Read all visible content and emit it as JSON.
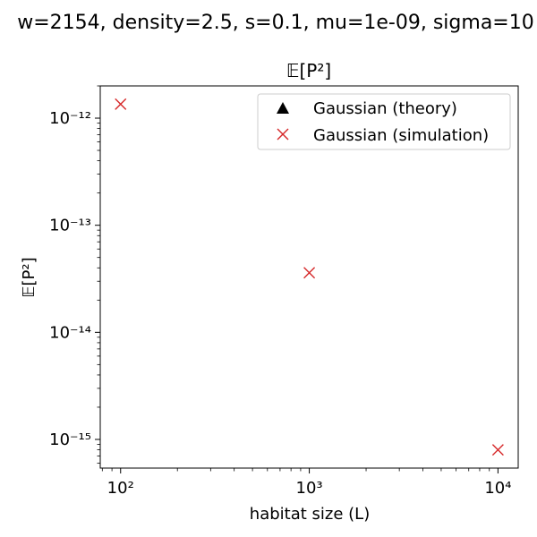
{
  "suptitle": "w=2154, density=2.5, s=0.1, mu=1e-09, sigma=10",
  "chart_data": {
    "type": "scatter",
    "title": "𝔼[P²]",
    "xlabel": "habitat size (L)",
    "ylabel": "𝔼[P²]",
    "xscale": "log",
    "yscale": "log",
    "xlim": [
      78,
      12800
    ],
    "ylim": [
      5.4e-16,
      2e-12
    ],
    "x_ticks": [
      {
        "value": 100,
        "label": "10²"
      },
      {
        "value": 1000,
        "label": "10³"
      },
      {
        "value": 10000,
        "label": "10⁴"
      }
    ],
    "y_ticks": [
      {
        "value": 1e-15,
        "label": "10⁻¹⁵"
      },
      {
        "value": 1e-14,
        "label": "10⁻¹⁴"
      },
      {
        "value": 1e-13,
        "label": "10⁻¹³"
      },
      {
        "value": 1e-12,
        "label": "10⁻¹²"
      }
    ],
    "grid": false,
    "legend_position": "upper right",
    "series": [
      {
        "name": "Gaussian (theory)",
        "marker": "triangle",
        "color": "#000000",
        "x": [],
        "y": []
      },
      {
        "name": "Gaussian (simulation)",
        "marker": "x",
        "color": "#d62728",
        "x": [
          100,
          1000,
          10000
        ],
        "y": [
          1.35e-12,
          3.6e-14,
          8e-16
        ]
      }
    ]
  }
}
